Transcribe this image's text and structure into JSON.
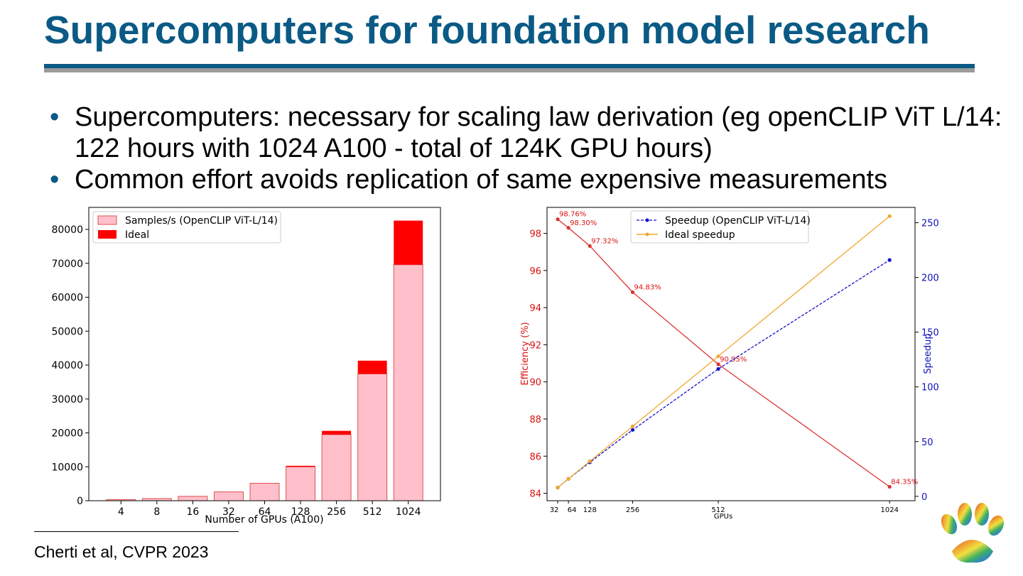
{
  "slide": {
    "title": "Supercomputers for foundation model research",
    "bullets": [
      "Supercomputers: necessary for scaling law derivation (eg openCLIP ViT L/14: 122 hours with 1024 A100  - total of 124K GPU hours)",
      "Common effort avoids replication of same expensive measurements"
    ],
    "citation": "Cherti et al, CVPR 2023",
    "colors": {
      "title": "#0a5a85",
      "rule_blue": "#0a5a85",
      "rule_gray": "#9a9a9a"
    },
    "logo_icon": "rainbow-paw-logo-icon"
  },
  "chart_data": [
    {
      "type": "bar",
      "stacked": true,
      "categories": [
        "4",
        "8",
        "16",
        "32",
        "64",
        "128",
        "256",
        "512",
        "1024"
      ],
      "series": [
        {
          "name": "Samples/s (OpenCLIP ViT-L/14)",
          "color": "#ffc0cb",
          "edge": "#e05050",
          "values": [
            320,
            640,
            1300,
            2600,
            5150,
            10000,
            19500,
            37400,
            69600
          ]
        },
        {
          "name": "Ideal",
          "color": "#ff0000",
          "values": [
            0,
            0,
            0,
            0,
            0,
            300,
            1100,
            3900,
            13000
          ]
        }
      ],
      "xlabel": "Number of GPUs (A100)",
      "ylabel": "",
      "ylim": [
        0,
        86500
      ],
      "yticks": [
        0,
        10000,
        20000,
        30000,
        40000,
        50000,
        60000,
        70000,
        80000
      ],
      "legend": "top-left"
    },
    {
      "type": "line",
      "x": [
        32,
        64,
        128,
        256,
        512,
        1024
      ],
      "xticks": [
        "32",
        "64",
        "128",
        "256",
        "512",
        "1024"
      ],
      "xlabel": "GPUs",
      "xlim": [
        0,
        1100
      ],
      "left_axis": {
        "label": "Efficiency (%)",
        "color": "#dd1111",
        "ylim": [
          83.6,
          99.4
        ],
        "ticks": [
          84,
          86,
          88,
          90,
          92,
          94,
          96,
          98
        ]
      },
      "right_axis": {
        "label": "Speedup",
        "color": "#1111bb",
        "ylim": [
          -4,
          264
        ],
        "ticks": [
          0,
          50,
          100,
          150,
          200,
          250
        ]
      },
      "series": [
        {
          "name": "Efficiency",
          "axis": "left",
          "color": "#dd3333",
          "style": "solid",
          "values": [
            98.76,
            98.3,
            97.32,
            94.83,
            90.95,
            84.35
          ],
          "labels": [
            "98.76%",
            "98.30%",
            "97.32%",
            "94.83%",
            "90.95%",
            "84.35%"
          ]
        },
        {
          "name": "Speedup (OpenCLIP ViT-L/14)",
          "axis": "right",
          "color": "#1111cc",
          "style": "dashed",
          "values": [
            8,
            16,
            31.1,
            60.7,
            116.4,
            215.9
          ]
        },
        {
          "name": "Ideal speedup",
          "axis": "right",
          "color": "#f0a830",
          "style": "solid",
          "values": [
            8,
            16,
            32,
            64,
            128,
            256
          ]
        }
      ],
      "legend": "top-center"
    }
  ]
}
